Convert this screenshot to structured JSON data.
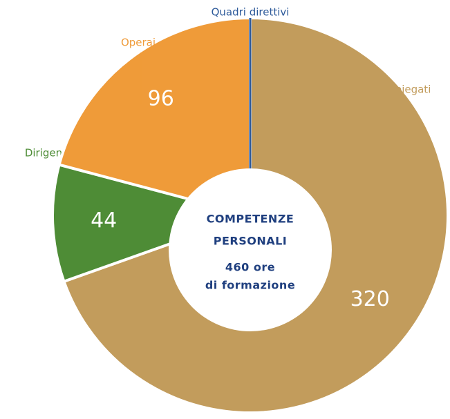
{
  "chart_data": {
    "type": "donut",
    "categories": [
      "Impiegati",
      "Dirigenti",
      "Operai",
      "Quadri direttivi"
    ],
    "values": [
      320,
      44,
      96,
      0
    ],
    "colors": [
      "#c29c5c",
      "#4e8c36",
      "#ef9b39",
      "#2d5a9a"
    ],
    "center_text": [
      "COMPETENZE",
      "PERSONALI",
      "460 ore",
      "di formazione"
    ]
  }
}
